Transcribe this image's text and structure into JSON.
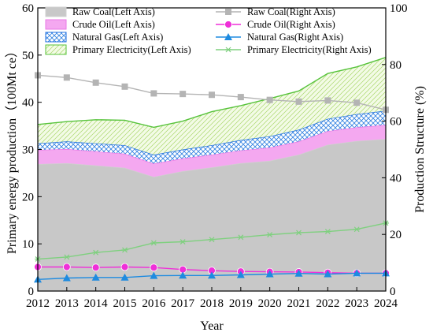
{
  "chart_data": {
    "type": "area",
    "x": [
      2012,
      2013,
      2014,
      2015,
      2016,
      2017,
      2018,
      2019,
      2020,
      2021,
      2022,
      2023,
      2024
    ],
    "xlabel": "Year",
    "ylabel_left": "Primary energy production（100Mt ce）",
    "ylabel_right": "Production Structure (%)",
    "ylim_left": [
      0,
      60
    ],
    "ylim_right": [
      0,
      100
    ],
    "yticks_left": [
      "0",
      "10",
      "20",
      "30",
      "40",
      "50",
      "60"
    ],
    "yticks_right": [
      "0",
      "20",
      "40",
      "60",
      "80",
      "100"
    ],
    "left_axis_series": [
      {
        "name": "Raw Coal(Left Axis)",
        "color": "#c8c8c8",
        "pattern": "solid",
        "values": [
          26.9,
          27.1,
          26.6,
          26.1,
          24.2,
          25.4,
          26.2,
          27.1,
          27.6,
          28.9,
          31.0,
          31.8,
          32.2
        ]
      },
      {
        "name": "Crude Oil(Left Axis)",
        "color": "#f4a8f0",
        "pattern": "solid",
        "values": [
          3.0,
          3.0,
          3.0,
          3.0,
          2.8,
          2.7,
          2.7,
          2.7,
          2.8,
          2.8,
          2.9,
          2.9,
          3.0
        ]
      },
      {
        "name": "Natural Gas(Left Axis)",
        "color": "#1e6fe0",
        "pattern": "crosshatch",
        "values": [
          1.4,
          1.6,
          1.7,
          1.8,
          1.9,
          1.9,
          2.0,
          2.2,
          2.4,
          2.5,
          2.6,
          2.8,
          3.0
        ]
      },
      {
        "name": "Primary Electricity(Left Axis)",
        "color": "#57c33b",
        "pattern": "diagonal",
        "values": [
          4.0,
          4.2,
          5.0,
          5.3,
          5.8,
          6.0,
          7.1,
          7.3,
          8.0,
          8.2,
          9.6,
          10.0,
          11.3
        ]
      }
    ],
    "right_axis_series": [
      {
        "name": "Raw Coal(Right Axis)",
        "color": "#b4b4b4",
        "marker": "square",
        "values": [
          76.2,
          75.4,
          73.6,
          72.2,
          69.8,
          69.6,
          69.3,
          68.5,
          67.5,
          66.9,
          67.3,
          66.5,
          64.0
        ]
      },
      {
        "name": "Crude Oil(Right Axis)",
        "color": "#ef2fd8",
        "marker": "circle",
        "values": [
          8.5,
          8.5,
          8.3,
          8.5,
          8.3,
          7.6,
          7.2,
          6.9,
          6.8,
          6.7,
          6.5,
          6.3,
          6.3
        ]
      },
      {
        "name": "Natural Gas(Right Axis)",
        "color": "#1e8be0",
        "marker": "triangle",
        "values": [
          4.1,
          4.6,
          4.8,
          4.8,
          5.4,
          5.5,
          5.5,
          5.7,
          6.0,
          6.2,
          6.0,
          6.3,
          6.3
        ]
      },
      {
        "name": "Primary Electricity(Right Axis)",
        "color": "#7fd07f",
        "marker": "asterisk",
        "values": [
          11.3,
          12.0,
          13.6,
          14.5,
          17.0,
          17.4,
          18.2,
          19.0,
          19.9,
          20.6,
          21.0,
          21.8,
          24.0
        ]
      }
    ],
    "grid": false,
    "legend_position": "top"
  }
}
